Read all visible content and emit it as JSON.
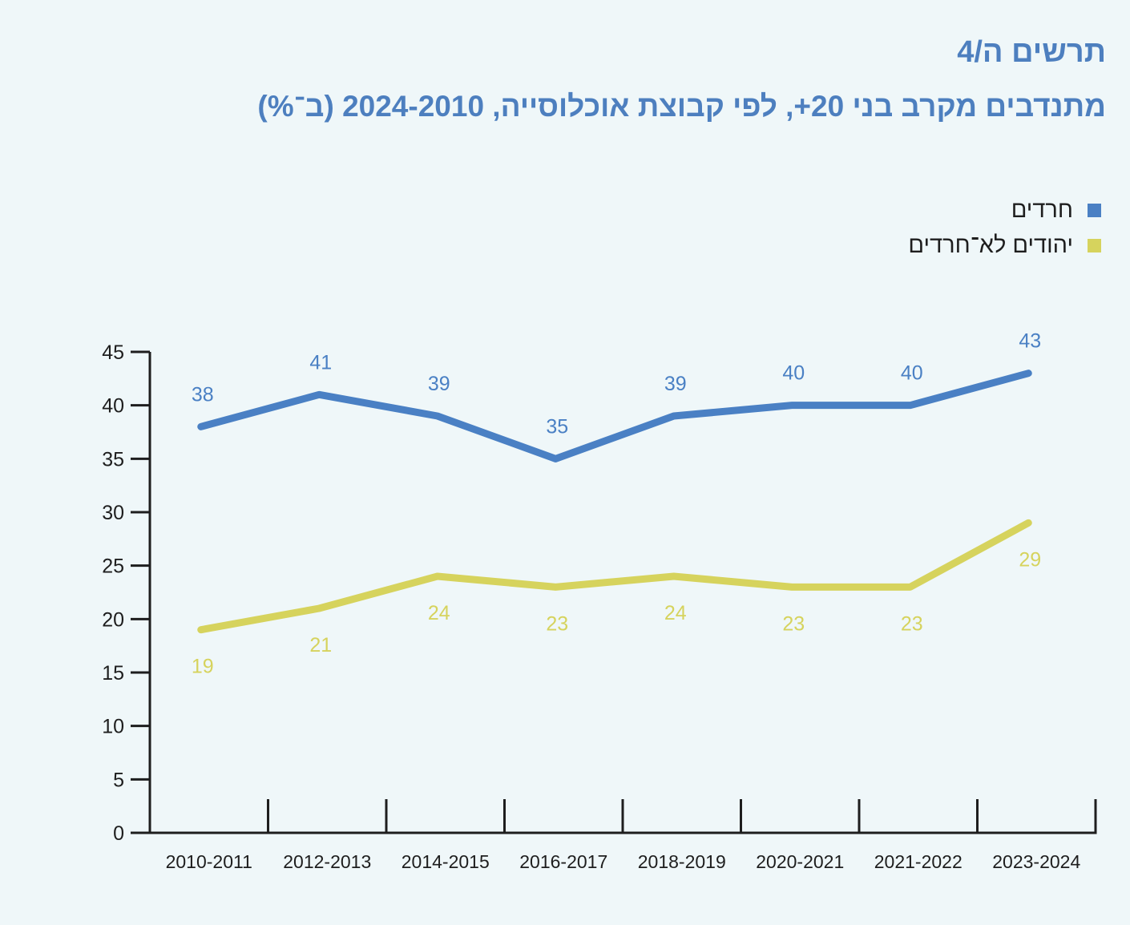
{
  "header": {
    "figure_number": "תרשים ה/4",
    "title": "מתנדבים  מקרב בני 20+, לפי קבוצת אוכלוסייה, 2024-2010 (ב־%)"
  },
  "colors": {
    "title": "#4d7fbf",
    "series_haredim": "#4a80c4",
    "series_non_haredi": "#d6d35d",
    "axis": "#1e1e1e",
    "background": "#eff7f9"
  },
  "chart_data": {
    "type": "line",
    "title": "מתנדבים  מקרב בני 20+, לפי קבוצת אוכלוסייה, 2024-2010 (ב־%)",
    "xlabel": "",
    "ylabel": "",
    "ylim": [
      0,
      45
    ],
    "y_ticks": [
      "0",
      "5",
      "10",
      "15",
      "20",
      "25",
      "30",
      "35",
      "40",
      "45"
    ],
    "categories": [
      "2010-2011",
      "2012-2013",
      "2014-2015",
      "2016-2017",
      "2018-2019",
      "2020-2021",
      "2021-2022",
      "2023-2024"
    ],
    "grid": false,
    "legend_position": "top-right",
    "series": [
      {
        "name": "חרדים",
        "color": "#4a80c4",
        "values": [
          38,
          41,
          39,
          35,
          39,
          40,
          40,
          43
        ],
        "labels": [
          "38",
          "41",
          "39",
          "35",
          "39",
          "40",
          "40",
          "43"
        ],
        "label_position": "above"
      },
      {
        "name": "יהודים לא־חרדים",
        "color": "#d6d35d",
        "values": [
          19,
          21,
          24,
          23,
          24,
          23,
          23,
          29
        ],
        "labels": [
          "19",
          "21",
          "24",
          "23",
          "24",
          "23",
          "23",
          "29"
        ],
        "label_position": "below"
      }
    ]
  },
  "legend": [
    {
      "label": "חרדים",
      "color": "#4a80c4"
    },
    {
      "label": "יהודים לא־חרדים",
      "color": "#d6d35d"
    }
  ]
}
